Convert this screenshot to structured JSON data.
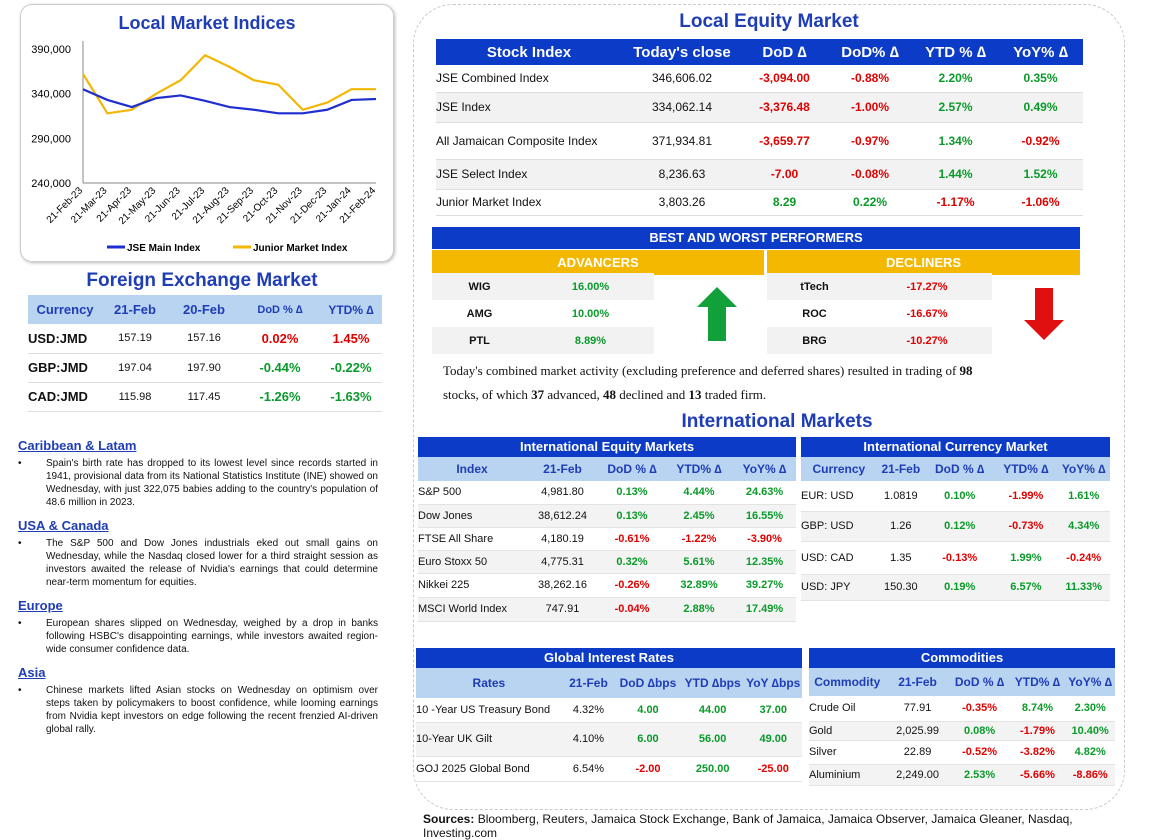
{
  "chart": {
    "title": "Local Market Indices",
    "y_ticks": [
      "390,000",
      "340,000",
      "290,000",
      "240,000"
    ],
    "x_ticks": [
      "21-Feb-23",
      "21-Mar-23",
      "21-Apr-23",
      "21-May-23",
      "21-Jun-23",
      "21-Jul-23",
      "21-Aug-23",
      "21-Sep-23",
      "21-Oct-23",
      "21-Nov-23",
      "21-Dec-23",
      "21-Jan-24",
      "21-Feb-24"
    ],
    "legend": [
      "JSE Main Index",
      "Junior Market Index"
    ],
    "colors": {
      "jse": "#1f2fcf",
      "junior": "#f2b705"
    }
  },
  "chart_data": {
    "type": "line",
    "title": "Local Market Indices",
    "ylim": [
      240000,
      390000
    ],
    "categories": [
      "21-Feb-23",
      "21-Mar-23",
      "21-Apr-23",
      "21-May-23",
      "21-Jun-23",
      "21-Jul-23",
      "21-Aug-23",
      "21-Sep-23",
      "21-Oct-23",
      "21-Nov-23",
      "21-Dec-23",
      "21-Jan-24",
      "21-Feb-24"
    ],
    "series": [
      {
        "name": "JSE Main Index",
        "values": [
          345000,
          333000,
          325000,
          335000,
          338000,
          332000,
          325000,
          322000,
          318000,
          318000,
          322000,
          333000,
          334000
        ]
      },
      {
        "name": "Junior Market Index",
        "values": [
          362000,
          318000,
          322000,
          340000,
          355000,
          383000,
          370000,
          355000,
          350000,
          322000,
          330000,
          345000,
          345000
        ]
      }
    ]
  },
  "fx": {
    "title": "Foreign Exchange Market",
    "headers": [
      "Currency",
      "21-Feb",
      "20-Feb",
      "DoD % ∆",
      "YTD% ∆"
    ],
    "rows": [
      {
        "cur": "USD:JMD",
        "a": "157.19",
        "b": "157.16",
        "dod": "0.02%",
        "ytd": "1.45%",
        "dod_s": "neg",
        "ytd_s": "neg"
      },
      {
        "cur": "GBP:JMD",
        "a": "197.04",
        "b": "197.90",
        "dod": "-0.44%",
        "ytd": "-0.22%",
        "dod_s": "pos",
        "ytd_s": "pos"
      },
      {
        "cur": "CAD:JMD",
        "a": "115.98",
        "b": "117.45",
        "dod": "-1.26%",
        "ytd": "-1.63%",
        "dod_s": "pos",
        "ytd_s": "pos"
      }
    ]
  },
  "news": [
    {
      "region": "Caribbean & Latam",
      "text": "Spain's birth rate has dropped to its lowest level since records started in 1941, provisional data from its National Statistics Institute (INE) showed on Wednesday, with just 322,075 babies adding to the country's population of 48.6 million in 2023."
    },
    {
      "region": "USA & Canada",
      "text": "The S&P 500 and Dow Jones industrials eked out small gains on Wednesday, while the Nasdaq closed lower for a third straight session as investors awaited the release of Nvidia's earnings that could determine near-term momentum for equities."
    },
    {
      "region": "Europe",
      "text": "European shares slipped on Wednesday, weighed by a drop in banks following HSBC's disappointing earnings, while investors awaited region-wide consumer confidence data."
    },
    {
      "region": "Asia",
      "text": "Chinese markets lifted Asian stocks on Wednesday on optimism over steps taken by policymakers to boost confidence, while looming earnings from Nvidia kept investors on edge following the recent frenzied AI-driven global rally."
    }
  ],
  "equity": {
    "title": "Local Equity Market",
    "headers": [
      "Stock Index",
      "Today's close",
      "DoD  ∆",
      "DoD% ∆",
      "YTD % ∆",
      "YoY% ∆"
    ],
    "rows": [
      {
        "name": "JSE Combined Index",
        "close": "346,606.02",
        "dod": "-3,094.00",
        "dodp": "-0.88%",
        "ytd": "2.20%",
        "yoy": "0.35%",
        "s": [
          "neg",
          "neg",
          "pos",
          "pos"
        ]
      },
      {
        "name": "JSE Index",
        "close": "334,062.14",
        "dod": "-3,376.48",
        "dodp": "-1.00%",
        "ytd": "2.57%",
        "yoy": "0.49%",
        "s": [
          "neg",
          "neg",
          "pos",
          "pos"
        ]
      },
      {
        "name": "All Jamaican Composite Index",
        "close": "371,934.81",
        "dod": "-3,659.77",
        "dodp": "-0.97%",
        "ytd": "1.34%",
        "yoy": "-0.92%",
        "s": [
          "neg",
          "neg",
          "pos",
          "neg"
        ]
      },
      {
        "name": "JSE Select Index",
        "close": "8,236.63",
        "dod": "-7.00",
        "dodp": "-0.08%",
        "ytd": "1.44%",
        "yoy": "1.52%",
        "s": [
          "neg",
          "neg",
          "pos",
          "pos"
        ]
      },
      {
        "name": "Junior Market Index",
        "close": "3,803.26",
        "dod": "8.29",
        "dodp": "0.22%",
        "ytd": "-1.17%",
        "yoy": "-1.06%",
        "s": [
          "pos",
          "pos",
          "neg",
          "neg"
        ]
      }
    ]
  },
  "performers": {
    "title": "BEST AND WORST PERFORMERS",
    "adv_label": "ADVANCERS",
    "dec_label": "DECLINERS",
    "advancers": [
      {
        "t": "WIG",
        "v": "16.00%"
      },
      {
        "t": "AMG",
        "v": "10.00%"
      },
      {
        "t": "PTL",
        "v": "8.89%"
      }
    ],
    "decliners": [
      {
        "t": "tTech",
        "v": "-17.27%"
      },
      {
        "t": "ROC",
        "v": "-16.67%"
      },
      {
        "t": "BRG",
        "v": "-10.27%"
      }
    ]
  },
  "summary": {
    "p1": "Today's combined market activity (excluding preference and deferred shares) resulted in trading of ",
    "n1": "98",
    "p2": "stocks, of which ",
    "n2": "37",
    "p3": " advanced, ",
    "n3": "48",
    "p4": " declined and ",
    "n4": "13",
    "p5": " traded firm."
  },
  "intl": {
    "title": "International Markets",
    "eq_title": "International Equity Markets",
    "eq_headers": [
      "Index",
      "21-Feb",
      "DoD % ∆",
      "YTD% ∆",
      "YoY% ∆"
    ],
    "eq_rows": [
      {
        "n": "S&P 500",
        "v": "4,981.80",
        "d": "0.13%",
        "y": "4.44%",
        "o": "24.63%",
        "s": [
          "pos",
          "pos",
          "pos"
        ]
      },
      {
        "n": "Dow Jones",
        "v": "38,612.24",
        "d": "0.13%",
        "y": "2.45%",
        "o": "16.55%",
        "s": [
          "pos",
          "pos",
          "pos"
        ]
      },
      {
        "n": "FTSE All Share",
        "v": "4,180.19",
        "d": "-0.61%",
        "y": "-1.22%",
        "o": "-3.90%",
        "s": [
          "neg",
          "neg",
          "neg"
        ]
      },
      {
        "n": "Euro Stoxx 50",
        "v": "4,775.31",
        "d": "0.32%",
        "y": "5.61%",
        "o": "12.35%",
        "s": [
          "pos",
          "pos",
          "pos"
        ]
      },
      {
        "n": "Nikkei 225",
        "v": "38,262.16",
        "d": "-0.26%",
        "y": "32.89%",
        "o": "39.27%",
        "s": [
          "neg",
          "pos",
          "pos"
        ]
      },
      {
        "n": "MSCI World Index",
        "v": "747.91",
        "d": "-0.04%",
        "y": "2.88%",
        "o": "17.49%",
        "s": [
          "neg",
          "pos",
          "pos"
        ]
      }
    ],
    "cur_title": "International Currency Market",
    "cur_headers": [
      "Currency",
      "21-Feb",
      "DoD % ∆",
      "YTD% ∆",
      "YoY% ∆"
    ],
    "cur_rows": [
      {
        "n": "EUR: USD",
        "v": "1.0819",
        "d": "0.10%",
        "y": "-1.99%",
        "o": "1.61%",
        "s": [
          "pos",
          "neg",
          "pos"
        ]
      },
      {
        "n": "GBP: USD",
        "v": "1.26",
        "d": "0.12%",
        "y": "-0.73%",
        "o": "4.34%",
        "s": [
          "pos",
          "neg",
          "pos"
        ]
      },
      {
        "n": "USD: CAD",
        "v": "1.35",
        "d": "-0.13%",
        "y": "1.99%",
        "o": "-0.24%",
        "s": [
          "neg",
          "pos",
          "neg"
        ]
      },
      {
        "n": "USD: JPY",
        "v": "150.30",
        "d": "0.19%",
        "y": "6.57%",
        "o": "11.33%",
        "s": [
          "pos",
          "pos",
          "pos"
        ]
      }
    ],
    "rates_title": "Global Interest Rates",
    "rates_headers": [
      "Rates",
      "21-Feb",
      "DoD ∆bps",
      "YTD ∆bps",
      "YoY ∆bps"
    ],
    "rates_rows": [
      {
        "n": "10 -Year US Treasury Bond",
        "v": "4.32%",
        "d": "4.00",
        "y": "44.00",
        "o": "37.00",
        "s": [
          "pos",
          "pos",
          "pos"
        ]
      },
      {
        "n": "10-Year UK Gilt",
        "v": "4.10%",
        "d": "6.00",
        "y": "56.00",
        "o": "49.00",
        "s": [
          "pos",
          "pos",
          "pos"
        ]
      },
      {
        "n": "GOJ 2025 Global Bond",
        "v": "6.54%",
        "d": "-2.00",
        "y": "250.00",
        "o": "-25.00",
        "s": [
          "neg",
          "pos",
          "neg"
        ]
      }
    ],
    "com_title": "Commodities",
    "com_headers": [
      "Commodity",
      "21-Feb",
      "DoD % ∆",
      "YTD% ∆",
      "YoY% ∆"
    ],
    "com_rows": [
      {
        "n": "Crude Oil",
        "v": "77.91",
        "d": "-0.35%",
        "y": "8.74%",
        "o": "2.30%",
        "s": [
          "neg",
          "pos",
          "pos"
        ]
      },
      {
        "n": "Gold",
        "v": "2,025.99",
        "d": "0.08%",
        "y": "-1.79%",
        "o": "10.40%",
        "s": [
          "pos",
          "neg",
          "pos"
        ]
      },
      {
        "n": "Silver",
        "v": "22.89",
        "d": "-0.52%",
        "y": "-3.82%",
        "o": "4.82%",
        "s": [
          "neg",
          "neg",
          "pos"
        ]
      },
      {
        "n": "Aluminium",
        "v": "2,249.00",
        "d": "2.53%",
        "y": "-5.66%",
        "o": "-8.86%",
        "s": [
          "pos",
          "neg",
          "neg"
        ]
      }
    ]
  },
  "sources": {
    "label": "Sources:",
    "text": " Bloomberg, Reuters, Jamaica Stock Exchange, Bank of Jamaica, Jamaica Observer, Jamaica Gleaner, Nasdaq, Investing.com"
  }
}
